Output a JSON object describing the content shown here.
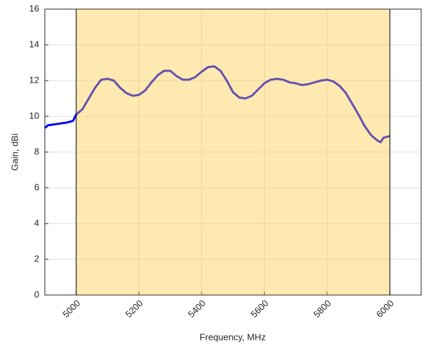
{
  "chart_data": {
    "type": "line",
    "x_label": "Frequency, MHz",
    "y_label": "Gain, dBi",
    "x": [
      4900,
      4910,
      4930,
      4950,
      4970,
      4990,
      5000,
      5020,
      5040,
      5060,
      5080,
      5100,
      5120,
      5140,
      5160,
      5180,
      5200,
      5220,
      5240,
      5260,
      5280,
      5300,
      5320,
      5340,
      5360,
      5380,
      5400,
      5420,
      5440,
      5460,
      5480,
      5500,
      5520,
      5540,
      5560,
      5580,
      5600,
      5620,
      5640,
      5660,
      5680,
      5700,
      5720,
      5740,
      5760,
      5780,
      5800,
      5820,
      5840,
      5860,
      5880,
      5900,
      5920,
      5940,
      5960,
      5970,
      5980,
      6000
    ],
    "series": [
      {
        "color": "#0000ff",
        "values": [
          9.35,
          9.5,
          9.55,
          9.6,
          9.65,
          9.75,
          10.1,
          10.4,
          11.0,
          11.6,
          12.05,
          12.1,
          12.0,
          11.6,
          11.3,
          11.15,
          11.2,
          11.45,
          11.9,
          12.3,
          12.55,
          12.55,
          12.25,
          12.05,
          12.05,
          12.2,
          12.5,
          12.75,
          12.8,
          12.55,
          12.0,
          11.35,
          11.05,
          11.0,
          11.15,
          11.5,
          11.85,
          12.05,
          12.1,
          12.05,
          11.9,
          11.85,
          11.75,
          11.8,
          11.9,
          12.0,
          12.05,
          11.95,
          11.7,
          11.3,
          10.7,
          10.1,
          9.45,
          8.95,
          8.65,
          8.55,
          8.8,
          8.9
        ]
      }
    ],
    "shaded_region": [
      5000,
      6000
    ],
    "shade_color": "#fcc83c",
    "xlim": [
      4900,
      6100
    ],
    "xticks": [
      5000,
      5200,
      5400,
      5600,
      5800,
      6000
    ],
    "ylim": [
      0,
      16
    ],
    "yticks": [
      0,
      2,
      4,
      6,
      8,
      10,
      12,
      14,
      16
    ],
    "grid": true
  }
}
